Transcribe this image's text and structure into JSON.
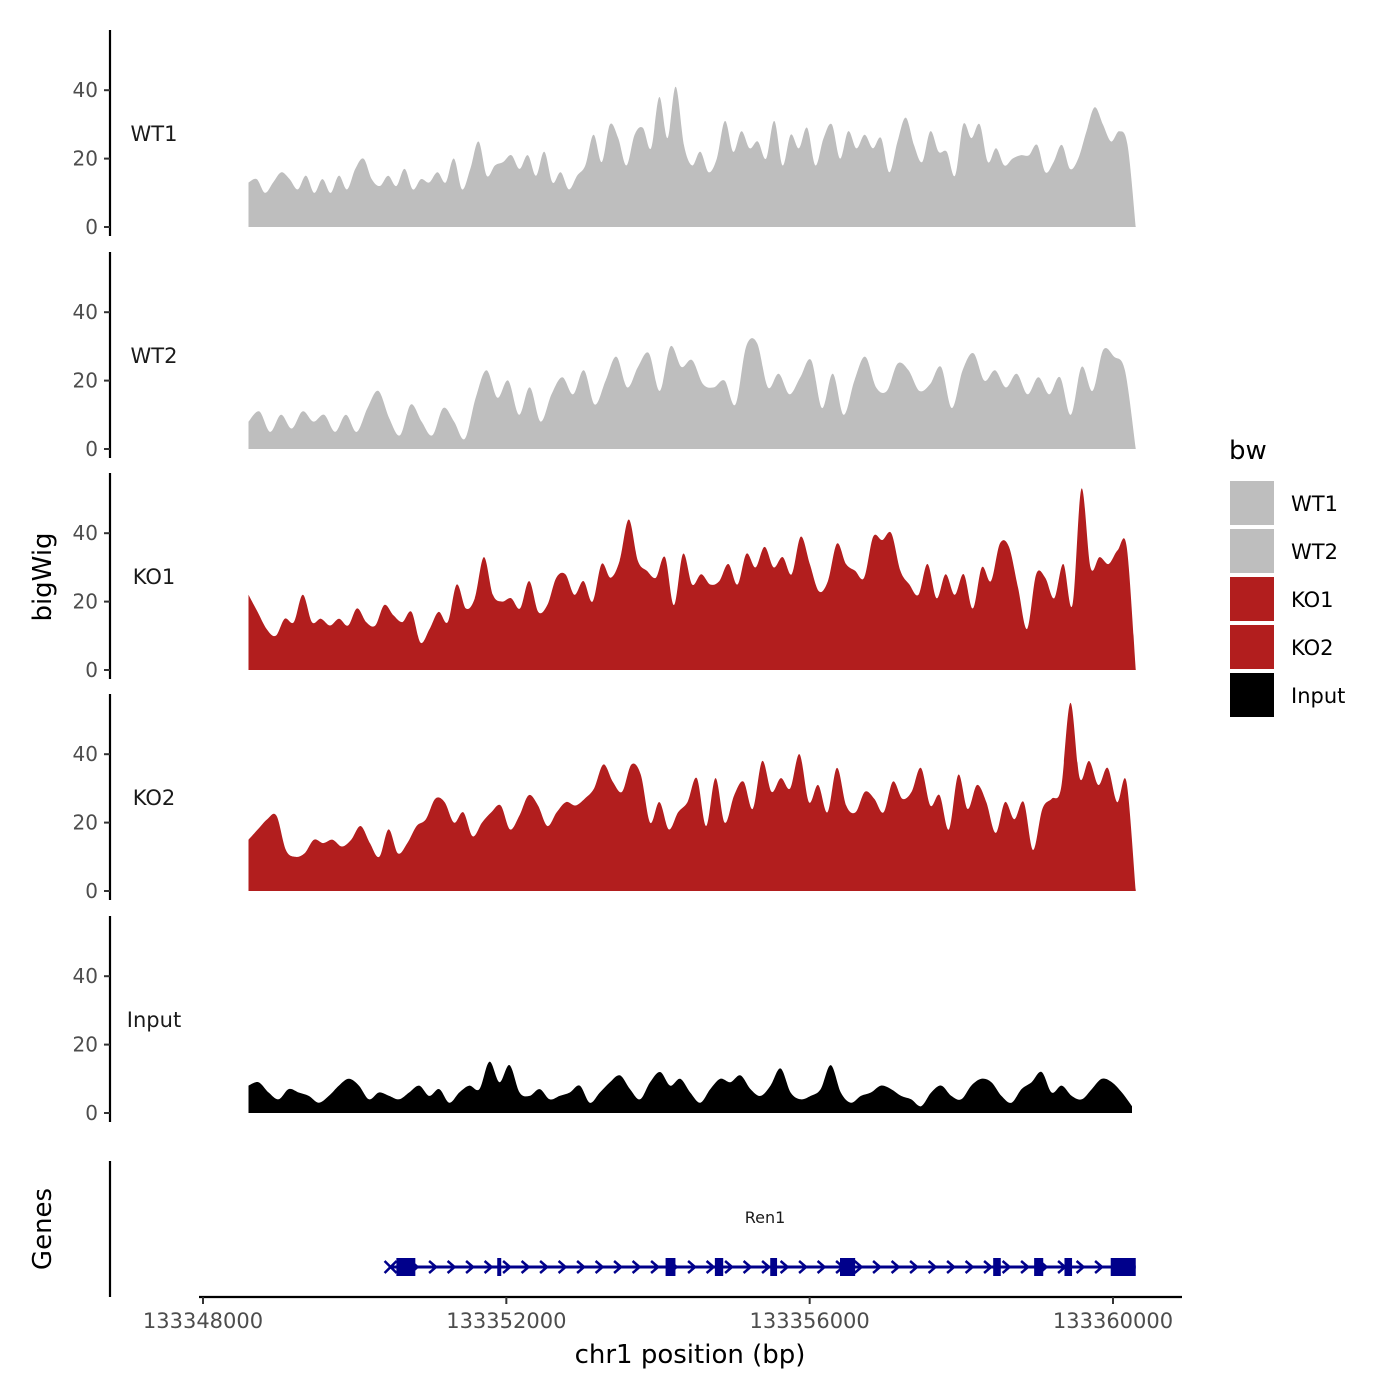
{
  "chart_data": {
    "type": "area",
    "xlabel": "chr1 position (bp)",
    "ylabel": "bigWig",
    "genes_label": "Genes",
    "x_range": [
      133347950,
      133360900
    ],
    "y_range": [
      0,
      57
    ],
    "y_ticks": [
      0,
      20,
      40
    ],
    "y_tick_labels": [
      "0",
      "20",
      "40"
    ],
    "x_ticks": [
      133348000,
      133352000,
      133356000,
      133360000
    ],
    "x_tick_labels": [
      "133348000",
      "133352000",
      "133356000",
      "133360000"
    ],
    "legend": {
      "title": "bw",
      "position": "right",
      "entries": [
        {
          "label": "WT1",
          "color": "#bebebe"
        },
        {
          "label": "WT2",
          "color": "#bebebe"
        },
        {
          "label": "KO1",
          "color": "#b21e1e"
        },
        {
          "label": "KO2",
          "color": "#b21e1e"
        },
        {
          "label": "Input",
          "color": "#000000"
        }
      ]
    },
    "tracks": [
      {
        "name": "WT1",
        "color": "#bebebe",
        "x_start": 133348600,
        "x_end": 133360300,
        "values": [
          13,
          14,
          10,
          13,
          16,
          14,
          11,
          15,
          10,
          14,
          10,
          15,
          11,
          17,
          20,
          14,
          12,
          15,
          12,
          17,
          11,
          14,
          13,
          16,
          13,
          20,
          11,
          17,
          25,
          15,
          18,
          19,
          21,
          17,
          21,
          15,
          22,
          13,
          16,
          11,
          15,
          18,
          27,
          19,
          30,
          26,
          18,
          27,
          29,
          23,
          38,
          26,
          41,
          24,
          18,
          22,
          16,
          20,
          31,
          22,
          28,
          23,
          25,
          20,
          31,
          18,
          27,
          23,
          29,
          18,
          26,
          30,
          20,
          28,
          23,
          27,
          23,
          26,
          16,
          25,
          32,
          24,
          19,
          28,
          22,
          22,
          15,
          30,
          26,
          30,
          19,
          23,
          18,
          20,
          21,
          21,
          24,
          16,
          19,
          24,
          17,
          20,
          28,
          35,
          30,
          25,
          28,
          24,
          0
        ]
      },
      {
        "name": "WT2",
        "color": "#bebebe",
        "x_start": 133348600,
        "x_end": 133360300,
        "values": [
          8,
          11,
          5,
          10,
          6,
          11,
          8,
          10,
          5,
          10,
          5,
          12,
          17,
          9,
          4,
          13,
          8,
          4,
          12,
          8,
          3,
          15,
          23,
          15,
          20,
          10,
          18,
          8,
          16,
          21,
          16,
          23,
          13,
          20,
          27,
          18,
          24,
          28,
          17,
          30,
          24,
          26,
          19,
          18,
          20,
          13,
          30,
          31,
          18,
          22,
          16,
          21,
          26,
          12,
          22,
          10,
          20,
          27,
          18,
          17,
          25,
          23,
          17,
          19,
          24,
          12,
          23,
          28,
          20,
          23,
          18,
          22,
          16,
          21,
          16,
          21,
          10,
          24,
          17,
          29,
          27,
          23,
          0
        ]
      },
      {
        "name": "KO1",
        "color": "#b21e1e",
        "x_start": 133348600,
        "x_end": 133360300,
        "values": [
          22,
          17,
          12,
          10,
          15,
          14,
          22,
          14,
          15,
          13,
          15,
          13,
          18,
          14,
          13,
          19,
          16,
          14,
          17,
          8,
          12,
          17,
          14,
          25,
          18,
          21,
          33,
          22,
          20,
          21,
          18,
          26,
          17,
          19,
          27,
          28,
          22,
          26,
          20,
          31,
          27,
          32,
          44,
          32,
          29,
          27,
          33,
          19,
          34,
          25,
          28,
          25,
          26,
          31,
          25,
          34,
          30,
          36,
          30,
          33,
          28,
          39,
          31,
          23,
          26,
          37,
          31,
          29,
          27,
          39,
          38,
          40,
          29,
          25,
          22,
          31,
          21,
          28,
          22,
          28,
          18,
          30,
          26,
          37,
          36,
          24,
          12,
          28,
          27,
          21,
          31,
          19,
          53,
          30,
          33,
          31,
          35,
          36,
          0
        ]
      },
      {
        "name": "KO2",
        "color": "#b21e1e",
        "x_start": 133348600,
        "x_end": 133360300,
        "values": [
          15,
          18,
          21,
          22,
          12,
          10,
          11,
          15,
          14,
          15,
          13,
          15,
          19,
          14,
          10,
          18,
          11,
          14,
          19,
          21,
          27,
          26,
          20,
          23,
          16,
          20,
          23,
          25,
          18,
          22,
          28,
          25,
          19,
          23,
          26,
          25,
          27,
          30,
          37,
          32,
          29,
          37,
          34,
          20,
          26,
          18,
          23,
          26,
          33,
          19,
          33,
          20,
          28,
          32,
          24,
          38,
          29,
          33,
          30,
          40,
          26,
          31,
          23,
          36,
          25,
          23,
          29,
          27,
          23,
          32,
          27,
          29,
          36,
          25,
          28,
          18,
          34,
          24,
          31,
          26,
          17,
          26,
          21,
          26,
          12,
          24,
          27,
          30,
          55,
          33,
          38,
          31,
          36,
          26,
          32,
          0
        ]
      },
      {
        "name": "Input",
        "color": "#000000",
        "x_start": 133348600,
        "x_end": 133360250,
        "values": [
          8,
          9,
          6,
          4,
          7,
          6,
          5,
          3,
          5,
          8,
          10,
          8,
          4,
          6,
          5,
          4,
          6,
          8,
          5,
          7,
          3,
          6,
          8,
          7,
          15,
          9,
          14,
          6,
          5,
          7,
          4,
          5,
          6,
          8,
          3,
          6,
          9,
          11,
          7,
          4,
          9,
          12,
          8,
          10,
          6,
          3,
          7,
          10,
          9,
          11,
          7,
          5,
          8,
          13,
          6,
          4,
          5,
          7,
          14,
          6,
          3,
          5,
          6,
          8,
          7,
          5,
          4,
          2,
          6,
          8,
          5,
          4,
          8,
          10,
          9,
          5,
          3,
          7,
          9,
          12,
          6,
          8,
          5,
          4,
          7,
          10,
          9,
          6,
          2
        ]
      }
    ],
    "gene": {
      "name": "Ren1",
      "strand": "+",
      "color": "#00008b",
      "x_start": 133350500,
      "x_end": 133360300,
      "exons": [
        [
          133350550,
          133350800
        ],
        [
          133351880,
          133351930
        ],
        [
          133354100,
          133354230
        ],
        [
          133354750,
          133354860
        ],
        [
          133355480,
          133355570
        ],
        [
          133356400,
          133356600
        ],
        [
          133358420,
          133358520
        ],
        [
          133358960,
          133359080
        ],
        [
          133359360,
          133359460
        ],
        [
          133359970,
          133360300
        ]
      ]
    }
  }
}
